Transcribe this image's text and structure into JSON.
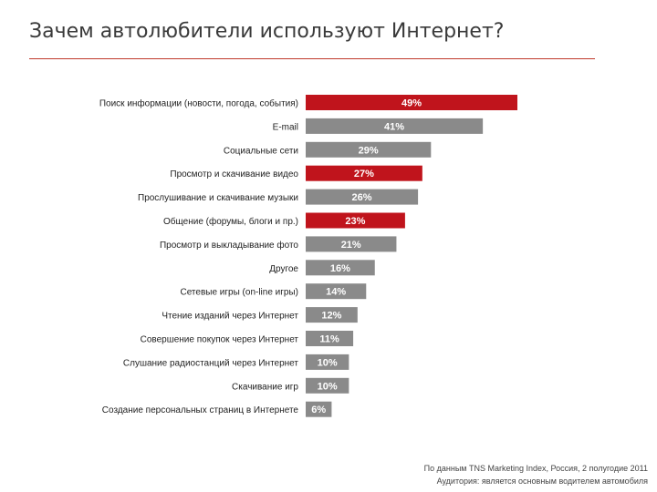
{
  "title": "Зачем автолюбители используют Интернет?",
  "colors": {
    "highlight": "#c0141c",
    "base": "#8a8a8a",
    "divider": "#c0392b"
  },
  "chart_data": {
    "type": "bar",
    "orientation": "horizontal",
    "categories": [
      "Поиск информации (новости, погода, события)",
      "E-mail",
      "Социальные сети",
      "Просмотр и скачивание видео",
      "Прослушивание и скачивание музыки",
      "Общение (форумы, блоги и пр.)",
      "Просмотр и выкладывание фото",
      "Другое",
      "Сетевые игры (on-line игры)",
      "Чтение изданий через Интернет",
      "Совершение покупок через Интернет",
      "Слушание радиостанций через Интернет",
      "Скачивание игр",
      "Создание персональных страниц в Интернете"
    ],
    "values": [
      49,
      41,
      29,
      27,
      26,
      23,
      21,
      16,
      14,
      12,
      11,
      10,
      10,
      6
    ],
    "value_labels": [
      "49%",
      "41%",
      "29%",
      "27%",
      "26%",
      "23%",
      "21%",
      "16%",
      "14%",
      "12%",
      "11%",
      "10%",
      "10%",
      "6%"
    ],
    "highlighted": [
      true,
      false,
      false,
      true,
      false,
      true,
      false,
      false,
      false,
      false,
      false,
      false,
      false,
      false
    ],
    "xlim": [
      0,
      49
    ]
  },
  "footnote": {
    "line1": "По данным TNS Marketing Index, Россия, 2 полугодие 2011",
    "line2": "Аудитория: является основным водителем автомобиля"
  }
}
